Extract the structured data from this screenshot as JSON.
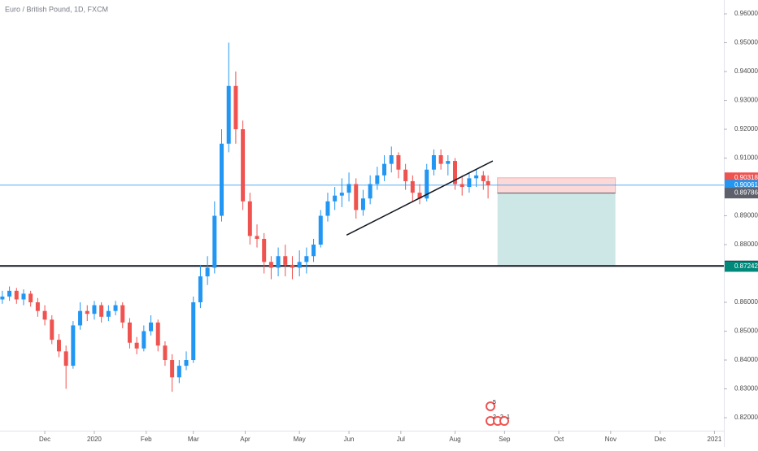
{
  "chart_data": {
    "type": "candlestick",
    "title": "Euro / British Pound, 1D, FXCM",
    "up_color": "#2196f3",
    "down_color": "#ef5350",
    "xlim": [
      0,
      307
    ],
    "xticks": [
      {
        "value": 19,
        "label": "Dec"
      },
      {
        "value": 40,
        "label": "2020"
      },
      {
        "value": 62,
        "label": "Feb"
      },
      {
        "value": 82,
        "label": "Mar"
      },
      {
        "value": 104,
        "label": "Apr"
      },
      {
        "value": 127,
        "label": "May"
      },
      {
        "value": 148,
        "label": "Jun"
      },
      {
        "value": 170,
        "label": "Jul"
      },
      {
        "value": 193,
        "label": "Aug"
      },
      {
        "value": 214,
        "label": "Sep"
      },
      {
        "value": 237,
        "label": "Oct"
      },
      {
        "value": 259,
        "label": "Nov"
      },
      {
        "value": 280,
        "label": "Dec"
      },
      {
        "value": 303,
        "label": "2021"
      }
    ],
    "ylim": [
      0.8155,
      0.9648
    ],
    "yticks": [
      {
        "value": 0.96,
        "label": "0.96000"
      },
      {
        "value": 0.95,
        "label": "0.95000"
      },
      {
        "value": 0.94,
        "label": "0.94000"
      },
      {
        "value": 0.93,
        "label": "0.93000"
      },
      {
        "value": 0.92,
        "label": "0.92000"
      },
      {
        "value": 0.91,
        "label": "0.91000"
      },
      {
        "value": 0.89,
        "label": "0.89000"
      },
      {
        "value": 0.88,
        "label": "0.88000"
      },
      {
        "value": 0.86,
        "label": "0.86000"
      },
      {
        "value": 0.85,
        "label": "0.85000"
      },
      {
        "value": 0.84,
        "label": "0.84000"
      },
      {
        "value": 0.83,
        "label": "0.83000"
      },
      {
        "value": 0.82,
        "label": "0.82000"
      }
    ],
    "series": [
      {
        "x": [
          1,
          4,
          7,
          10,
          13,
          16,
          19,
          22,
          25,
          28,
          31,
          34,
          37,
          40,
          43,
          46,
          49,
          52,
          55,
          58,
          61,
          64,
          67,
          70,
          73,
          76,
          79,
          82,
          85,
          88,
          91,
          94,
          97,
          100,
          103,
          106,
          109,
          112,
          115,
          118,
          121,
          124,
          127,
          130,
          133,
          136,
          139,
          142,
          145,
          148,
          151,
          154,
          157,
          160,
          163,
          166,
          169,
          172,
          175,
          178,
          181,
          184,
          187,
          190,
          193,
          196,
          199,
          202,
          205,
          207
        ],
        "open": [
          0.861,
          0.862,
          0.864,
          0.861,
          0.863,
          0.86,
          0.857,
          0.854,
          0.847,
          0.843,
          0.838,
          0.852,
          0.857,
          0.856,
          0.859,
          0.855,
          0.857,
          0.859,
          0.853,
          0.846,
          0.844,
          0.85,
          0.853,
          0.845,
          0.84,
          0.834,
          0.838,
          0.84,
          0.86,
          0.869,
          0.872,
          0.89,
          0.915,
          0.935,
          0.92,
          0.895,
          0.883,
          0.882,
          0.874,
          0.872,
          0.876,
          0.873,
          0.872,
          0.874,
          0.876,
          0.88,
          0.89,
          0.895,
          0.897,
          0.898,
          0.901,
          0.892,
          0.896,
          0.901,
          0.904,
          0.908,
          0.911,
          0.906,
          0.902,
          0.898,
          0.896,
          0.906,
          0.911,
          0.908,
          0.909,
          0.901,
          0.9,
          0.903,
          0.904,
          0.902
        ],
        "high": [
          0.864,
          0.8655,
          0.865,
          0.8645,
          0.864,
          0.8615,
          0.859,
          0.8555,
          0.849,
          0.845,
          0.8535,
          0.86,
          0.859,
          0.8605,
          0.86,
          0.859,
          0.8605,
          0.86,
          0.8545,
          0.848,
          0.852,
          0.8555,
          0.854,
          0.8465,
          0.842,
          0.84,
          0.843,
          0.862,
          0.873,
          0.876,
          0.895,
          0.92,
          0.95,
          0.94,
          0.923,
          0.898,
          0.887,
          0.884,
          0.876,
          0.879,
          0.88,
          0.876,
          0.878,
          0.879,
          0.882,
          0.892,
          0.898,
          0.9,
          0.903,
          0.905,
          0.903,
          0.899,
          0.904,
          0.907,
          0.911,
          0.914,
          0.912,
          0.908,
          0.904,
          0.901,
          0.908,
          0.913,
          0.913,
          0.911,
          0.91,
          0.904,
          0.905,
          0.906,
          0.9055,
          0.904
        ],
        "low": [
          0.8595,
          0.8605,
          0.8595,
          0.859,
          0.8585,
          0.855,
          0.852,
          0.8455,
          0.841,
          0.83,
          0.837,
          0.8505,
          0.8535,
          0.854,
          0.853,
          0.8535,
          0.8555,
          0.851,
          0.844,
          0.842,
          0.843,
          0.8485,
          0.843,
          0.838,
          0.829,
          0.832,
          0.8365,
          0.839,
          0.858,
          0.866,
          0.87,
          0.888,
          0.912,
          0.915,
          0.892,
          0.88,
          0.879,
          0.87,
          0.868,
          0.869,
          0.869,
          0.868,
          0.869,
          0.87,
          0.874,
          0.879,
          0.888,
          0.892,
          0.893,
          0.895,
          0.889,
          0.89,
          0.894,
          0.899,
          0.902,
          0.905,
          0.903,
          0.899,
          0.895,
          0.894,
          0.895,
          0.904,
          0.906,
          0.904,
          0.899,
          0.897,
          0.898,
          0.9,
          0.899,
          0.896
        ],
        "close": [
          0.862,
          0.864,
          0.861,
          0.863,
          0.86,
          0.857,
          0.854,
          0.847,
          0.843,
          0.838,
          0.852,
          0.857,
          0.856,
          0.859,
          0.855,
          0.857,
          0.859,
          0.853,
          0.846,
          0.844,
          0.85,
          0.853,
          0.845,
          0.84,
          0.834,
          0.838,
          0.84,
          0.86,
          0.869,
          0.872,
          0.89,
          0.915,
          0.935,
          0.92,
          0.895,
          0.883,
          0.882,
          0.874,
          0.872,
          0.876,
          0.873,
          0.872,
          0.874,
          0.876,
          0.88,
          0.89,
          0.895,
          0.897,
          0.898,
          0.901,
          0.892,
          0.896,
          0.901,
          0.904,
          0.908,
          0.911,
          0.906,
          0.902,
          0.898,
          0.896,
          0.906,
          0.911,
          0.908,
          0.909,
          0.901,
          0.9,
          0.903,
          0.904,
          0.902,
          0.9006
        ]
      }
    ],
    "support_line": {
      "value": 0.87261,
      "color": "#131722"
    },
    "price_line": {
      "value": 0.90061,
      "color": "#2196f3"
    },
    "trendline": {
      "x": [
        147,
        209
      ],
      "y": [
        0.8833,
        0.909
      ],
      "color": "#131722"
    },
    "position": {
      "x": [
        211,
        261
      ],
      "stop": 0.90318,
      "entry": 0.89786,
      "target": 0.87242,
      "stop_color": "#ef5350",
      "entry_color": "#5d606b",
      "target_color": "#00897b"
    },
    "events": [
      "5",
      "2",
      "2",
      "1"
    ]
  }
}
